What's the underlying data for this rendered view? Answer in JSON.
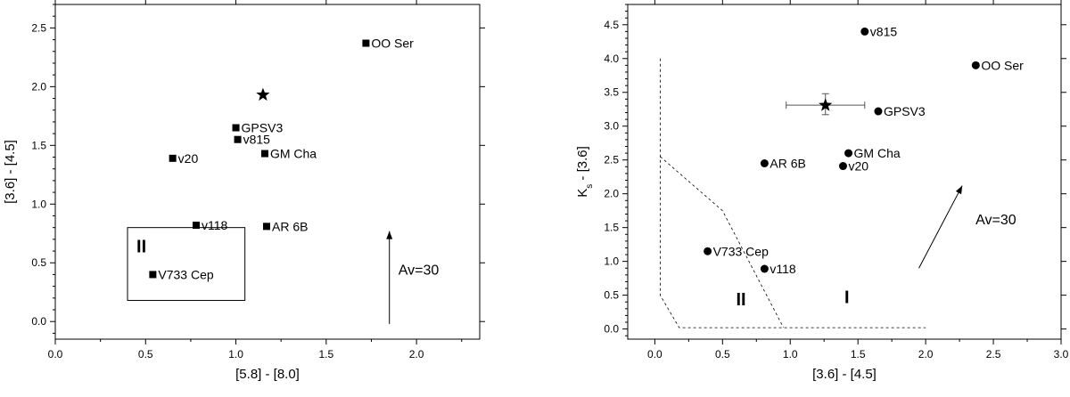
{
  "chart_data": [
    {
      "type": "scatter",
      "xlabel": "[5.8] - [8.0]",
      "ylabel": "[3.6] - [4.5]",
      "xlim": [
        0.0,
        2.35
      ],
      "ylim": [
        -0.15,
        2.7
      ],
      "x_ticks": [
        "0.0",
        "0.5",
        "1.0",
        "1.5",
        "2.0"
      ],
      "y_ticks": [
        "0.0",
        "0.5",
        "1.0",
        "1.5",
        "2.0",
        "2.5"
      ],
      "marker": "square",
      "points": [
        {
          "label": "OO Ser",
          "x": 1.72,
          "y": 2.37
        },
        {
          "label": "GPSV3",
          "x": 1.0,
          "y": 1.65
        },
        {
          "label": "v815",
          "x": 1.01,
          "y": 1.55
        },
        {
          "label": "GM Cha",
          "x": 1.16,
          "y": 1.43
        },
        {
          "label": "v20",
          "x": 0.65,
          "y": 1.39
        },
        {
          "label": "v118",
          "x": 0.78,
          "y": 0.82
        },
        {
          "label": "AR 6B",
          "x": 1.17,
          "y": 0.81
        },
        {
          "label": "V733 Cep",
          "x": 0.54,
          "y": 0.4
        }
      ],
      "star": {
        "x": 1.15,
        "y": 1.93
      },
      "region_label": "II",
      "region_box": {
        "x0": 0.4,
        "x1": 1.05,
        "y0": 0.18,
        "y1": 0.8
      },
      "reddening_vector": {
        "label": "Av=30",
        "x0": 1.85,
        "y0": -0.02,
        "x1": 1.85,
        "y1": 0.77
      }
    },
    {
      "type": "scatter",
      "xlabel": "[3.6] - [4.5]",
      "ylabel": "Ks - [3.6]",
      "ylabel_main": "K",
      "ylabel_sub": "s",
      "ylabel_rest": " - [3.6]",
      "xlim": [
        -0.2,
        3.0
      ],
      "ylim": [
        -0.15,
        4.8
      ],
      "x_ticks": [
        "0.0",
        "0.5",
        "1.0",
        "1.5",
        "2.0",
        "2.5",
        "3.0"
      ],
      "y_ticks": [
        "0.0",
        "0.5",
        "1.0",
        "1.5",
        "2.0",
        "2.5",
        "3.0",
        "3.5",
        "4.0",
        "4.5"
      ],
      "marker": "circle",
      "points": [
        {
          "label": "v815",
          "x": 1.55,
          "y": 4.4
        },
        {
          "label": "OO Ser",
          "x": 2.37,
          "y": 3.9
        },
        {
          "label": "GPSV3",
          "x": 1.65,
          "y": 3.22
        },
        {
          "label": "GM Cha",
          "x": 1.43,
          "y": 2.6
        },
        {
          "label": "AR 6B",
          "x": 0.81,
          "y": 2.45
        },
        {
          "label": "v20",
          "x": 1.39,
          "y": 2.41
        },
        {
          "label": "V733 Cep",
          "x": 0.39,
          "y": 1.15
        },
        {
          "label": "v118",
          "x": 0.81,
          "y": 0.89
        }
      ],
      "star": {
        "x": 1.26,
        "y": 3.31,
        "xerr": [
          0.97,
          1.55
        ],
        "yerr": [
          3.17,
          3.48
        ]
      },
      "region_labels": [
        {
          "text": "II",
          "x": 0.6,
          "y": 0.35
        },
        {
          "text": "I",
          "x": 1.4,
          "y": 0.38
        }
      ],
      "dashed_boundaries": [
        [
          [
            0.04,
            4.0
          ],
          [
            0.04,
            0.5
          ],
          [
            0.18,
            0.02
          ],
          [
            2.0,
            0.02
          ]
        ],
        [
          [
            0.04,
            2.55
          ],
          [
            0.5,
            1.75
          ],
          [
            0.95,
            0.02
          ]
        ]
      ],
      "reddening_vector": {
        "label": "Av=30",
        "x0": 1.95,
        "y0": 0.9,
        "x1": 2.27,
        "y1": 2.12
      }
    }
  ]
}
